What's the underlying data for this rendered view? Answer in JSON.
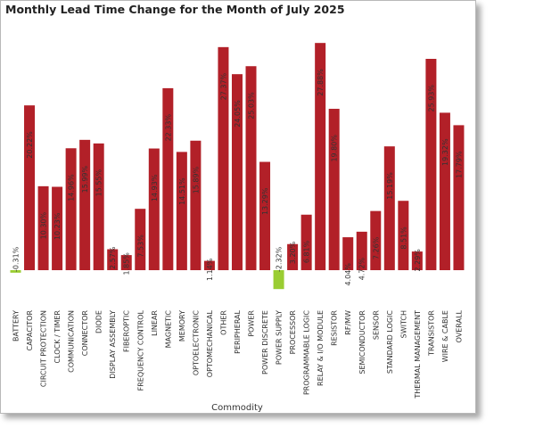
{
  "chart_data": {
    "type": "bar",
    "title": "Monthly Lead Time Change for the Month of July 2025",
    "xlabel": "Commodity",
    "ylabel": "",
    "ylim": [
      -3,
      27
    ],
    "grid": false,
    "legend": "none",
    "colors": {
      "positive": "#b22028",
      "negative": "#9acd32"
    },
    "categories": [
      "BATTERY",
      "CAPACITOR",
      "CIRCUIT PROTECTION",
      "CLOCK / TIMER",
      "COMMUNICATION",
      "CONNECTOR",
      "DIODE",
      "DISPLAY ASSEMBLY",
      "FIBEROPTIC",
      "FREQUENCY CONTROL",
      "LINEAR",
      "MAGNETIC",
      "MEMORY",
      "OPTOELECTRONIC",
      "OPTOMECHANICAL",
      "OTHER",
      "PERIPHERAL",
      "POWER",
      "POWER DISCRETE",
      "POWER SUPPLY",
      "PROCESSOR",
      "PROGRAMMABLE LOGIC",
      "RELAY & I/O MODULE",
      "RESISTOR",
      "RF/MW",
      "SEMICONDUCTOR",
      "SENSOR",
      "STANDARD LOGIC",
      "SWITCH",
      "THERMAL MANAGEMENT",
      "TRANSISTOR",
      "WIRE & CABLE",
      "OVERALL"
    ],
    "values": [
      -0.31,
      20.22,
      10.3,
      10.23,
      14.96,
      15.99,
      15.55,
      2.57,
      1.85,
      7.53,
      14.93,
      22.33,
      14.51,
      15.89,
      1.14,
      27.37,
      24.05,
      25.03,
      13.29,
      -2.32,
      3.2,
      6.81,
      27.88,
      19.8,
      4.04,
      4.72,
      7.26,
      15.19,
      8.51,
      2.29,
      25.93,
      19.32,
      17.79
    ],
    "data_labels": [
      "-0.31%",
      "20.22%",
      "10.30%",
      "10.23%",
      "14.96%",
      "15.99%",
      "15.55%",
      "2.57%",
      "1.85%",
      "7.53%",
      "14.93%",
      "22.33%",
      "14.51%",
      "15.89%",
      "1.14%",
      "27.37%",
      "24.05%",
      "25.03%",
      "13.29%",
      "-2.32%",
      "3.20%",
      "6.81%",
      "27.88%",
      "19.80%",
      "4.04%",
      "4.72%",
      "7.26%",
      "15.19%",
      "8.51%",
      "2.29%",
      "25.93%",
      "19.32%",
      "17.79%"
    ]
  }
}
